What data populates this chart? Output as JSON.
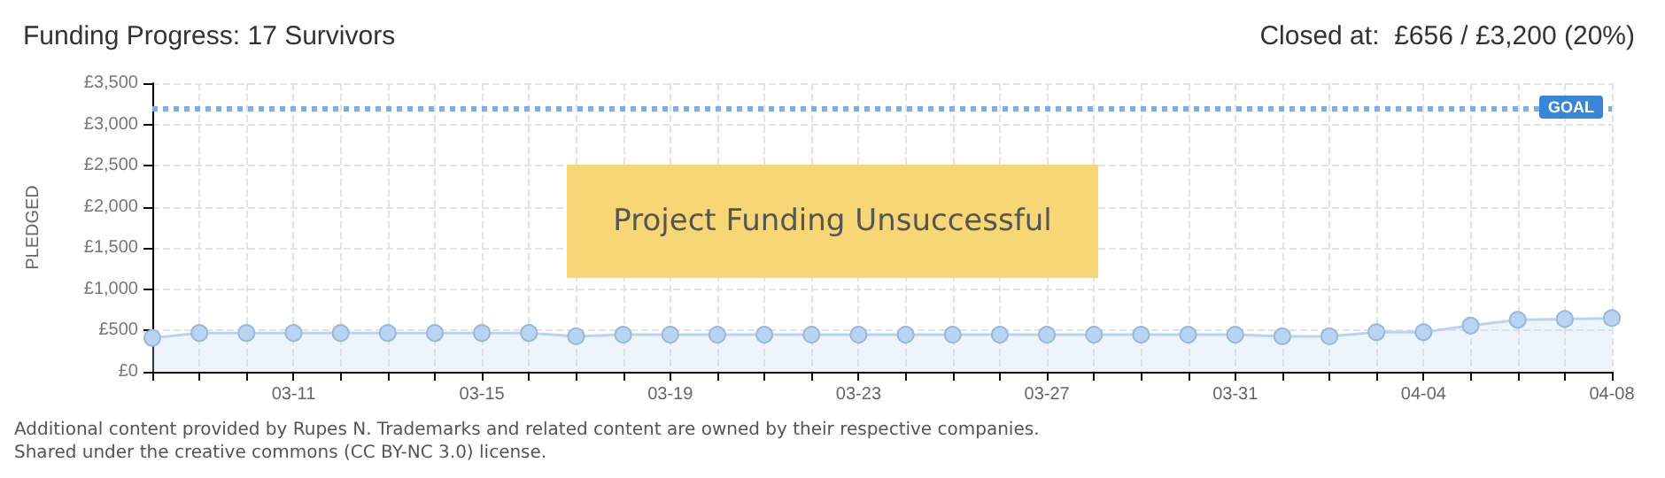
{
  "chart_data": {
    "type": "area",
    "title": "Funding Progress: 17 Survivors",
    "subtitle": "Closed at:  £656 / £3,200 (20%)",
    "ylabel": "PLEDGED",
    "categories": [
      null,
      null,
      null,
      "03-11",
      null,
      null,
      null,
      "03-15",
      null,
      null,
      null,
      "03-19",
      null,
      null,
      null,
      "03-23",
      null,
      null,
      null,
      "03-27",
      null,
      null,
      null,
      "03-31",
      null,
      null,
      null,
      "04-04",
      null,
      null,
      null,
      "04-08"
    ],
    "series": [
      {
        "color": "#b8d4f2",
        "values": [
          410,
          470,
          470,
          470,
          470,
          470,
          470,
          470,
          470,
          430,
          450,
          450,
          450,
          450,
          450,
          450,
          450,
          450,
          450,
          450,
          450,
          450,
          450,
          450,
          430,
          430,
          480,
          480,
          560,
          630,
          640,
          650
        ]
      }
    ],
    "ylim": [
      0,
      3500
    ],
    "yticks": [
      {
        "value": 0,
        "label": "£0"
      },
      {
        "value": 500,
        "label": "£500"
      },
      {
        "value": 1000,
        "label": "£1,000"
      },
      {
        "value": 1500,
        "label": "£1,500"
      },
      {
        "value": 2000,
        "label": "£2,000"
      },
      {
        "value": 2500,
        "label": "£2,500"
      },
      {
        "value": 3000,
        "label": "£3,000"
      },
      {
        "value": 3500,
        "label": "£3,500"
      }
    ],
    "grid": true,
    "marker": "circle",
    "line_style": "solid",
    "ref_lines": [
      {
        "axis": "y",
        "value": 3200,
        "label": "GOAL",
        "color": "#7aaee6",
        "line_style": "dotted"
      }
    ],
    "annotations": [
      "Project Funding Unsuccessful",
      "Additional content provided by Rupes N. Trademarks and related content are owned by their respective companies.",
      "Shared under the creative commons (CC BY-NC 3.0) license."
    ]
  }
}
